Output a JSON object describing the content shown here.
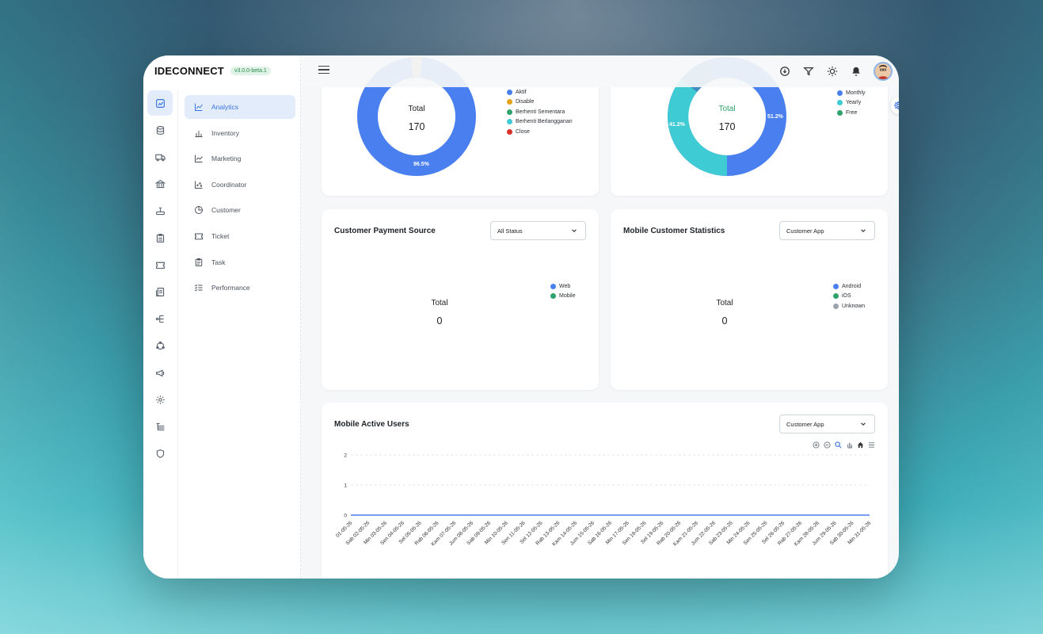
{
  "brand": {
    "name": "IDECONNECT",
    "version": "v3.0.0-beta.1"
  },
  "menu": [
    {
      "label": "Analytics",
      "icon": "analytics-icon",
      "active": true
    },
    {
      "label": "Inventory",
      "icon": "inventory-icon"
    },
    {
      "label": "Marketing",
      "icon": "marketing-icon"
    },
    {
      "label": "Coordinator",
      "icon": "coordinator-icon"
    },
    {
      "label": "Customer",
      "icon": "customer-icon"
    },
    {
      "label": "Ticket",
      "icon": "ticket-icon"
    },
    {
      "label": "Task",
      "icon": "task-icon"
    },
    {
      "label": "Performance",
      "icon": "performance-icon"
    }
  ],
  "status_card": {
    "total_label": "Total",
    "total": "170",
    "pct_main": "96.5%",
    "legend": [
      {
        "label": "Aktif",
        "color": "#4a7ff0"
      },
      {
        "label": "Disable",
        "color": "#e6a21c"
      },
      {
        "label": "Berhenti Sementara",
        "color": "#2fa36b"
      },
      {
        "label": "Berhenti Berlangganan",
        "color": "#3ecbd4"
      },
      {
        "label": "Close",
        "color": "#d9322b"
      }
    ]
  },
  "plan_card": {
    "total_label": "Total",
    "total": "170",
    "pct_left": "41.2%",
    "pct_right": "51.2%",
    "legend": [
      {
        "label": "Monthly",
        "color": "#4a7ff0"
      },
      {
        "label": "Yearly",
        "color": "#3ecbd4"
      },
      {
        "label": "Free",
        "color": "#2fa36b"
      }
    ]
  },
  "payment_card": {
    "title": "Customer Payment Source",
    "select": "All Status",
    "total_label": "Total",
    "total": "0",
    "legend": [
      {
        "label": "Web",
        "color": "#4a7ff0"
      },
      {
        "label": "Mobile",
        "color": "#2fa36b"
      }
    ]
  },
  "mobile_stats_card": {
    "title": "Mobile Customer Statistics",
    "select": "Customer App",
    "total_label": "Total",
    "total": "0",
    "legend": [
      {
        "label": "Android",
        "color": "#4a7ff0"
      },
      {
        "label": "iOS",
        "color": "#2fa36b"
      },
      {
        "label": "Unknown",
        "color": "#9aa3ad"
      }
    ]
  },
  "active_users_card": {
    "title": "Mobile Active Users",
    "select": "Customer App"
  },
  "chart_data": {
    "type": "line",
    "title": "Mobile Active Users",
    "ylim": [
      0,
      2
    ],
    "yticks": [
      "2",
      "1",
      "0"
    ],
    "x": [
      "01-05-26",
      "Sab 02-05-26",
      "Min 03-05-26",
      "Sen 04-05-26",
      "Sel 05-05-26",
      "Rab 06-05-26",
      "Kam 07-05-26",
      "Jum 08-05-26",
      "Sab 09-05-26",
      "Min 10-05-26",
      "Sen 11-05-26",
      "Sel 12-05-26",
      "Rab 13-05-26",
      "Kam 14-05-26",
      "Jum 15-05-26",
      "Sab 16-05-26",
      "Min 17-05-26",
      "Sen 18-05-26",
      "Sel 19-05-26",
      "Rab 20-05-26",
      "Kam 21-05-26",
      "Jum 22-05-26",
      "Sab 23-05-26",
      "Min 24-05-26",
      "Sen 25-05-26",
      "Sel 26-05-26",
      "Rab 27-05-26",
      "Kam 28-05-26",
      "Jum 29-05-26",
      "Sab 30-05-26",
      "Min 31-05-26"
    ],
    "series": [
      {
        "values": [
          0,
          0,
          0,
          0,
          0,
          0,
          0,
          0,
          0,
          0,
          0,
          0,
          0,
          0,
          0,
          0,
          0,
          0,
          0,
          0,
          0,
          0,
          0,
          0,
          0,
          0,
          0,
          0,
          0,
          0,
          0
        ]
      }
    ],
    "grid": true
  }
}
